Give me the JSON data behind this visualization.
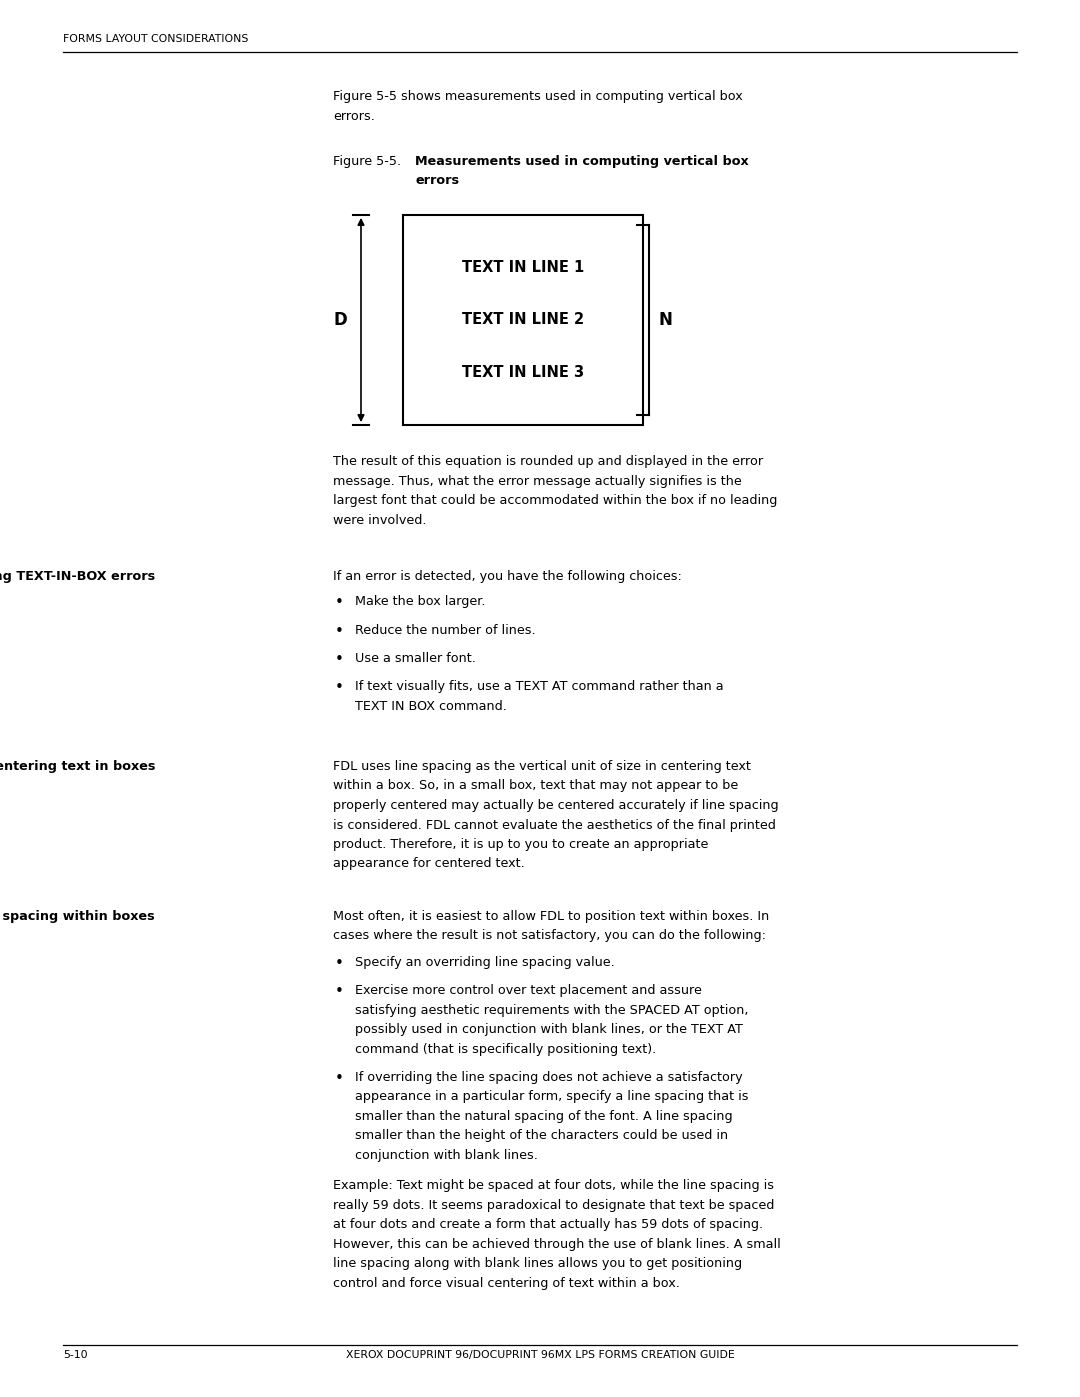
{
  "bg_color": "#ffffff",
  "text_color": "#000000",
  "header_text": "FORMS LAYOUT CONSIDERATIONS",
  "footer_left": "5-10",
  "footer_center": "XEROX DOCUPRINT 96/DOCUPRINT 96MX LPS FORMS CREATION GUIDE",
  "intro_lines": [
    "Figure 5-5 shows measurements used in computing vertical box",
    "errors."
  ],
  "figure_label": "Figure 5-5.",
  "figure_title_line1": "Measurements used in computing vertical box",
  "figure_title_line2": "errors",
  "diagram_lines": [
    "TEXT IN LINE 1",
    "TEXT IN LINE 2",
    "TEXT IN LINE 3"
  ],
  "label_D": "D",
  "label_N": "N",
  "result_lines": [
    "The result of this equation is rounded up and displayed in the error",
    "message. Thus, what the error message actually signifies is the",
    "largest font that could be accommodated within the box if no leading",
    "were involved."
  ],
  "section1_heading": "Correcting TEXT-IN-BOX errors",
  "section1_intro": "If an error is detected, you have the following choices:",
  "section1_bullet_lines": [
    [
      "Make the box larger."
    ],
    [
      "Reduce the number of lines."
    ],
    [
      "Use a smaller font."
    ],
    [
      "If text visually fits, use a TEXT AT command rather than a",
      "TEXT IN BOX command."
    ]
  ],
  "section2_heading": "Centering text in boxes",
  "section2_lines": [
    "FDL uses line spacing as the vertical unit of size in centering text",
    "within a box. So, in a small box, text that may not appear to be",
    "properly centered may actually be centered accurately if line spacing",
    "is considered. FDL cannot evaluate the aesthetics of the final printed",
    "product. Therefore, it is up to you to create an appropriate",
    "appearance for centered text."
  ],
  "section3_heading": "Specifying line spacing within boxes",
  "section3_intro_lines": [
    "Most often, it is easiest to allow FDL to position text within boxes. In",
    "cases where the result is not satisfactory, you can do the following:"
  ],
  "section3_bullet_lines": [
    [
      "Specify an overriding line spacing value."
    ],
    [
      "Exercise more control over text placement and assure",
      "satisfying aesthetic requirements with the SPACED AT option,",
      "possibly used in conjunction with blank lines, or the TEXT AT",
      "command (that is specifically positioning text)."
    ],
    [
      "If overriding the line spacing does not achieve a satisfactory",
      "appearance in a particular form, specify a line spacing that is",
      "smaller than the natural spacing of the font. A line spacing",
      "smaller than the height of the characters could be used in",
      "conjunction with blank lines."
    ]
  ],
  "example_lines": [
    "Example: Text might be spaced at four dots, while the line spacing is",
    "really 59 dots. It seems paradoxical to designate that text be spaced",
    "at four dots and create a form that actually has 59 dots of spacing.",
    "However, this can be achieved through the use of blank lines. A small",
    "line spacing along with blank lines allows you to get positioning",
    "control and force visual centering of text within a box."
  ]
}
